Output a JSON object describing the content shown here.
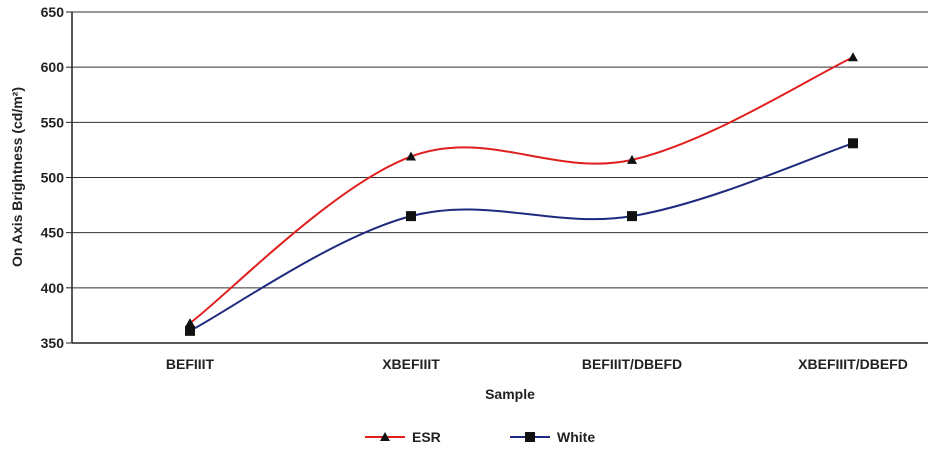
{
  "chart_data": {
    "type": "line",
    "categories": [
      "BEFIIIT",
      "XBEFIIIT",
      "BEFIIIT/DBEFD",
      "XBEFIIIT/DBEFD"
    ],
    "series": [
      {
        "name": "ESR",
        "values": [
          368,
          519,
          516,
          609
        ],
        "color": "#e0201f",
        "marker": "triangle"
      },
      {
        "name": "White",
        "values": [
          361,
          465,
          465,
          531
        ],
        "color": "#1f2a7e",
        "marker": "square"
      }
    ],
    "xlabel": "Sample",
    "ylabel": "On Axis Brightness (cd/m²)",
    "ylim": [
      350,
      650
    ],
    "yticks": [
      350,
      400,
      450,
      500,
      550,
      600,
      650
    ],
    "grid": true,
    "legend": "bottom-center"
  }
}
